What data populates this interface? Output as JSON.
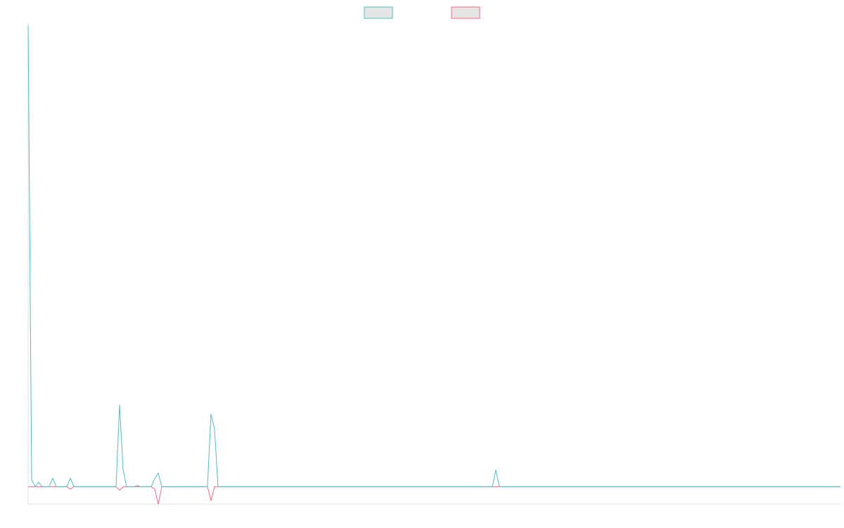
{
  "chart_data": {
    "type": "line",
    "title": "",
    "xlabel": "",
    "ylabel": "",
    "grid": false,
    "legend_placement": "top-center",
    "x_count": 232,
    "ylim": [
      -1.5,
      40
    ],
    "series": [
      {
        "name": "",
        "color": "#4bc0c0",
        "fill": "#e6e6e6",
        "points": [
          [
            0,
            40
          ],
          [
            1,
            0.6
          ],
          [
            2,
            0
          ],
          [
            3,
            0.4
          ],
          [
            4,
            0
          ],
          [
            5,
            0
          ],
          [
            6,
            0
          ],
          [
            7,
            0.75
          ],
          [
            8,
            0
          ],
          [
            9,
            0
          ],
          [
            10,
            0
          ],
          [
            11,
            0
          ],
          [
            12,
            0.75
          ],
          [
            13,
            0
          ],
          [
            14,
            0
          ],
          [
            15,
            0
          ],
          [
            16,
            0
          ],
          [
            17,
            0
          ],
          [
            18,
            0
          ],
          [
            19,
            0
          ],
          [
            20,
            0
          ],
          [
            21,
            0
          ],
          [
            22,
            0
          ],
          [
            23,
            0
          ],
          [
            24,
            0
          ],
          [
            25,
            0
          ],
          [
            26,
            7.1
          ],
          [
            27,
            1.5
          ],
          [
            28,
            0
          ],
          [
            29,
            0
          ],
          [
            30,
            0
          ],
          [
            31,
            0.1
          ],
          [
            32,
            0
          ],
          [
            33,
            0
          ],
          [
            34,
            0
          ],
          [
            35,
            0
          ],
          [
            36,
            0.7
          ],
          [
            37,
            1.2
          ],
          [
            38,
            0
          ],
          [
            39,
            0
          ],
          [
            40,
            0
          ],
          [
            41,
            0
          ],
          [
            42,
            0
          ],
          [
            43,
            0
          ],
          [
            44,
            0
          ],
          [
            45,
            0
          ],
          [
            46,
            0
          ],
          [
            47,
            0
          ],
          [
            48,
            0
          ],
          [
            49,
            0
          ],
          [
            50,
            0
          ],
          [
            51,
            0
          ],
          [
            52,
            6.3
          ],
          [
            53,
            5
          ],
          [
            54,
            0
          ],
          [
            55,
            0
          ],
          [
            130,
            0
          ],
          [
            131,
            0
          ],
          [
            132,
            0
          ],
          [
            133,
            1.45
          ],
          [
            134,
            0
          ],
          [
            135,
            0
          ],
          [
            231,
            0
          ]
        ]
      },
      {
        "name": "",
        "color": "#ff6384",
        "fill": "#e6e6e6",
        "points": [
          [
            0,
            0
          ],
          [
            10,
            0
          ],
          [
            11,
            0
          ],
          [
            12,
            -0.2
          ],
          [
            13,
            0
          ],
          [
            14,
            0
          ],
          [
            15,
            0
          ],
          [
            16,
            0
          ],
          [
            17,
            0
          ],
          [
            18,
            0
          ],
          [
            19,
            0
          ],
          [
            20,
            0
          ],
          [
            21,
            0
          ],
          [
            22,
            0
          ],
          [
            23,
            0
          ],
          [
            24,
            0
          ],
          [
            25,
            0
          ],
          [
            26,
            -0.3
          ],
          [
            27,
            0
          ],
          [
            28,
            0
          ],
          [
            29,
            0
          ],
          [
            30,
            0
          ],
          [
            31,
            0
          ],
          [
            32,
            0
          ],
          [
            33,
            0
          ],
          [
            34,
            0
          ],
          [
            35,
            0
          ],
          [
            36,
            -0.2
          ],
          [
            37,
            -1.5
          ],
          [
            38,
            0
          ],
          [
            39,
            0
          ],
          [
            40,
            0
          ],
          [
            41,
            0
          ],
          [
            42,
            0
          ],
          [
            43,
            0
          ],
          [
            44,
            0
          ],
          [
            45,
            0
          ],
          [
            46,
            0
          ],
          [
            47,
            0
          ],
          [
            48,
            0
          ],
          [
            49,
            0
          ],
          [
            50,
            0
          ],
          [
            51,
            0
          ],
          [
            52,
            -1.2
          ],
          [
            53,
            0
          ],
          [
            54,
            0
          ],
          [
            231,
            0
          ]
        ]
      }
    ]
  }
}
